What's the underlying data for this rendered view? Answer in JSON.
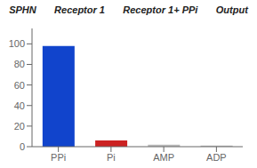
{
  "chart_data": {
    "type": "bar",
    "categories": [
      "PPi",
      "Pi",
      "AMP",
      "ADP"
    ],
    "values": [
      98,
      6,
      2,
      1
    ],
    "colors": [
      "#1144cc",
      "#cc2222",
      "#bbbbbb",
      "#bbbbbb"
    ],
    "ylim": [
      0,
      115
    ],
    "yticks": [
      0,
      20,
      40,
      60,
      80,
      100
    ],
    "grid": false,
    "annotations": [
      "SPHN",
      "Receptor 1",
      "Receptor 1+ PPi",
      "Output"
    ]
  }
}
